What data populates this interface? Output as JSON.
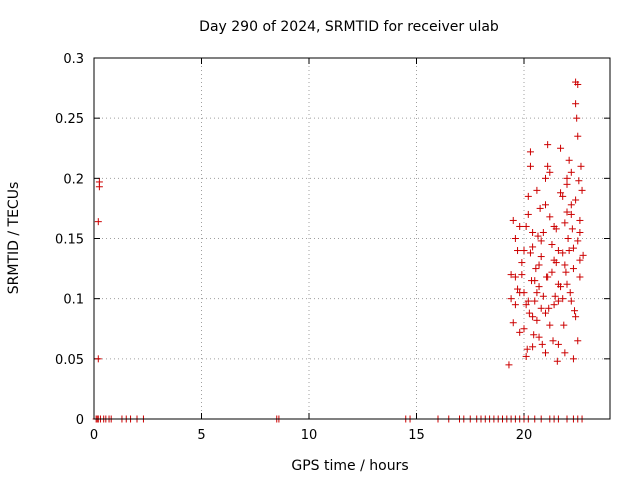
{
  "chart_data": {
    "type": "scatter",
    "title": "Day 290 of 2024, SRMTID for receiver ulab",
    "xlabel": "GPS time / hours",
    "ylabel": "SRMTID / TECUs",
    "xlim": [
      0,
      24
    ],
    "ylim": [
      0,
      0.3
    ],
    "xticks": [
      0,
      5,
      10,
      15,
      20
    ],
    "xtick_labels": [
      "0",
      "5",
      "10",
      "15",
      "20"
    ],
    "yticks": [
      0,
      0.05,
      0.1,
      0.15,
      0.2,
      0.25,
      0.3
    ],
    "ytick_labels": [
      "0",
      "0.05",
      "0.1",
      "0.15",
      "0.2",
      "0.25",
      "0.3"
    ],
    "grid": true,
    "marker": "plus",
    "color": "#cc0000",
    "series": [
      {
        "name": "SRMTID",
        "points": [
          [
            0.1,
            0
          ],
          [
            0.15,
            0
          ],
          [
            0.2,
            0
          ],
          [
            0.3,
            0
          ],
          [
            0.45,
            0
          ],
          [
            0.55,
            0
          ],
          [
            0.7,
            0
          ],
          [
            0.8,
            0
          ],
          [
            1.3,
            0
          ],
          [
            1.5,
            0
          ],
          [
            1.7,
            0
          ],
          [
            2.0,
            0
          ],
          [
            2.3,
            0
          ],
          [
            8.5,
            0
          ],
          [
            8.6,
            0
          ],
          [
            14.5,
            0
          ],
          [
            14.7,
            0
          ],
          [
            16.0,
            0
          ],
          [
            16.5,
            0
          ],
          [
            17.0,
            0
          ],
          [
            17.2,
            0
          ],
          [
            17.5,
            0
          ],
          [
            17.8,
            0
          ],
          [
            18.0,
            0
          ],
          [
            18.2,
            0
          ],
          [
            18.4,
            0
          ],
          [
            18.6,
            0
          ],
          [
            18.8,
            0
          ],
          [
            19.0,
            0
          ],
          [
            19.2,
            0
          ],
          [
            19.4,
            0
          ],
          [
            19.6,
            0
          ],
          [
            19.8,
            0
          ],
          [
            20.0,
            0
          ],
          [
            20.2,
            0
          ],
          [
            20.5,
            0
          ],
          [
            20.8,
            0
          ],
          [
            21.2,
            0
          ],
          [
            21.4,
            0
          ],
          [
            21.6,
            0
          ],
          [
            22.0,
            0
          ],
          [
            22.3,
            0
          ],
          [
            22.5,
            0
          ],
          [
            22.7,
            0
          ],
          [
            0.2,
            0.05
          ],
          [
            0.2,
            0.164
          ],
          [
            0.25,
            0.193
          ],
          [
            0.25,
            0.197
          ],
          [
            19.3,
            0.045
          ],
          [
            19.4,
            0.12
          ],
          [
            19.5,
            0.165
          ],
          [
            19.6,
            0.095
          ],
          [
            19.7,
            0.14
          ],
          [
            19.8,
            0.072
          ],
          [
            19.9,
            0.13
          ],
          [
            20.0,
            0.105
          ],
          [
            20.1,
            0.16
          ],
          [
            20.15,
            0.058
          ],
          [
            20.2,
            0.185
          ],
          [
            20.25,
            0.088
          ],
          [
            20.3,
            0.21
          ],
          [
            20.35,
            0.115
          ],
          [
            20.4,
            0.143
          ],
          [
            20.45,
            0.07
          ],
          [
            20.5,
            0.098
          ],
          [
            20.55,
            0.125
          ],
          [
            20.6,
            0.082
          ],
          [
            20.65,
            0.152
          ],
          [
            20.7,
            0.11
          ],
          [
            20.75,
            0.175
          ],
          [
            20.8,
            0.135
          ],
          [
            20.85,
            0.062
          ],
          [
            20.9,
            0.155
          ],
          [
            21.0,
            0.2
          ],
          [
            21.05,
            0.118
          ],
          [
            21.1,
            0.228
          ],
          [
            21.15,
            0.092
          ],
          [
            21.2,
            0.168
          ],
          [
            21.3,
            0.145
          ],
          [
            21.35,
            0.065
          ],
          [
            21.4,
            0.132
          ],
          [
            21.45,
            0.102
          ],
          [
            21.5,
            0.158
          ],
          [
            21.55,
            0.048
          ],
          [
            21.6,
            0.112
          ],
          [
            21.7,
            0.188
          ],
          [
            21.8,
            0.138
          ],
          [
            21.85,
            0.078
          ],
          [
            21.9,
            0.163
          ],
          [
            21.95,
            0.122
          ],
          [
            22.0,
            0.172
          ],
          [
            22.05,
            0.15
          ],
          [
            22.1,
            0.215
          ],
          [
            22.15,
            0.105
          ],
          [
            22.2,
            0.178
          ],
          [
            22.25,
            0.158
          ],
          [
            22.3,
            0.142
          ],
          [
            22.35,
            0.09
          ],
          [
            22.4,
            0.28
          ],
          [
            22.45,
            0.25
          ],
          [
            22.5,
            0.235
          ],
          [
            22.55,
            0.198
          ],
          [
            22.6,
            0.165
          ],
          [
            22.65,
            0.21
          ],
          [
            22.7,
            0.19
          ],
          [
            22.75,
            0.136
          ],
          [
            19.5,
            0.08
          ],
          [
            19.7,
            0.108
          ],
          [
            19.9,
            0.12
          ],
          [
            20.1,
            0.095
          ],
          [
            20.3,
            0.138
          ],
          [
            20.5,
            0.115
          ],
          [
            20.7,
            0.128
          ],
          [
            20.9,
            0.102
          ],
          [
            21.1,
            0.118
          ],
          [
            21.3,
            0.122
          ],
          [
            21.5,
            0.13
          ],
          [
            21.7,
            0.11
          ],
          [
            21.9,
            0.128
          ],
          [
            22.1,
            0.14
          ],
          [
            22.3,
            0.125
          ],
          [
            22.5,
            0.148
          ],
          [
            22.6,
            0.132
          ],
          [
            19.6,
            0.15
          ],
          [
            19.8,
            0.16
          ],
          [
            20.0,
            0.14
          ],
          [
            20.2,
            0.17
          ],
          [
            20.4,
            0.155
          ],
          [
            20.6,
            0.19
          ],
          [
            20.8,
            0.148
          ],
          [
            21.0,
            0.178
          ],
          [
            21.2,
            0.205
          ],
          [
            21.4,
            0.16
          ],
          [
            21.6,
            0.14
          ],
          [
            21.8,
            0.185
          ],
          [
            22.0,
            0.195
          ],
          [
            22.2,
            0.17
          ],
          [
            22.4,
            0.182
          ],
          [
            22.6,
            0.155
          ],
          [
            19.4,
            0.1
          ],
          [
            19.6,
            0.118
          ],
          [
            19.8,
            0.105
          ],
          [
            20.0,
            0.075
          ],
          [
            20.2,
            0.098
          ],
          [
            20.4,
            0.085
          ],
          [
            20.6,
            0.105
          ],
          [
            20.8,
            0.092
          ],
          [
            21.0,
            0.088
          ],
          [
            21.2,
            0.078
          ],
          [
            21.4,
            0.095
          ],
          [
            21.6,
            0.098
          ],
          [
            21.8,
            0.1
          ],
          [
            22.0,
            0.112
          ],
          [
            22.2,
            0.098
          ],
          [
            22.4,
            0.085
          ],
          [
            22.6,
            0.118
          ],
          [
            20.1,
            0.052
          ],
          [
            20.4,
            0.06
          ],
          [
            20.7,
            0.068
          ],
          [
            21.0,
            0.055
          ],
          [
            21.6,
            0.062
          ],
          [
            21.9,
            0.055
          ],
          [
            22.3,
            0.05
          ],
          [
            22.5,
            0.065
          ],
          [
            20.3,
            0.222
          ],
          [
            21.1,
            0.21
          ],
          [
            21.7,
            0.225
          ],
          [
            22.0,
            0.2
          ],
          [
            22.2,
            0.205
          ],
          [
            22.4,
            0.262
          ],
          [
            22.5,
            0.278
          ]
        ]
      }
    ]
  }
}
